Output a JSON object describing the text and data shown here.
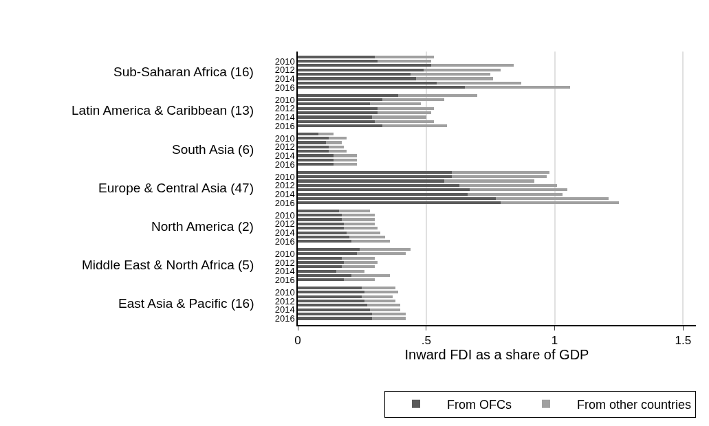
{
  "chart_data": {
    "type": "bar",
    "orientation": "horizontal",
    "stacked": true,
    "categories": [
      null,
      "2010",
      null,
      "2012",
      null,
      "2014",
      null,
      "2016",
      null,
      "2010",
      null,
      "2012",
      null,
      "2014",
      null,
      "2016",
      null,
      "2010",
      null,
      "2012",
      null,
      "2014",
      null,
      "2016",
      null,
      "2010",
      null,
      "2012",
      null,
      "2014",
      null,
      "2016",
      null,
      "2010",
      null,
      "2012",
      null,
      "2014",
      null,
      "2016",
      null,
      "2010",
      null,
      "2012",
      null,
      "2014",
      null,
      "2016",
      null,
      "2010",
      null,
      "2012",
      null,
      "2014",
      null,
      "2016"
    ],
    "series": [
      {
        "name": "From OFCs",
        "color": "#5a5a5a",
        "values": [
          0.3,
          0.31,
          0.52,
          0.49,
          0.44,
          0.46,
          0.54,
          0.65,
          0.39,
          0.33,
          0.28,
          0.31,
          0.31,
          0.29,
          0.3,
          0.33,
          0.08,
          0.12,
          0.11,
          0.12,
          0.12,
          0.14,
          0.14,
          0.14,
          0.6,
          0.6,
          0.57,
          0.63,
          0.67,
          0.66,
          0.77,
          0.79,
          0.16,
          0.17,
          0.17,
          0.18,
          0.18,
          0.19,
          0.2,
          0.21,
          0.24,
          0.23,
          0.17,
          0.18,
          0.17,
          0.15,
          0.21,
          0.18,
          0.25,
          0.26,
          0.25,
          0.26,
          0.27,
          0.28,
          0.29,
          0.29
        ]
      },
      {
        "name": "From other countries",
        "color": "#a0a0a0",
        "values": [
          0.23,
          0.21,
          0.32,
          0.3,
          0.31,
          0.3,
          0.33,
          0.41,
          0.31,
          0.24,
          0.2,
          0.22,
          0.21,
          0.21,
          0.23,
          0.25,
          0.06,
          0.07,
          0.06,
          0.06,
          0.07,
          0.09,
          0.09,
          0.09,
          0.38,
          0.37,
          0.35,
          0.38,
          0.38,
          0.37,
          0.44,
          0.46,
          0.12,
          0.13,
          0.13,
          0.12,
          0.13,
          0.13,
          0.14,
          0.15,
          0.2,
          0.19,
          0.13,
          0.13,
          0.13,
          0.11,
          0.15,
          0.12,
          0.13,
          0.13,
          0.12,
          0.12,
          0.13,
          0.12,
          0.13,
          0.13
        ]
      }
    ],
    "annotations": [
      "Sub-Saharan Africa (16)",
      "Latin America & Caribbean (13)",
      "South Asia (6)",
      "Europe & Central Asia (47)",
      "North America (2)",
      "Middle East & North Africa (5)",
      "East Asia & Pacific (16)"
    ],
    "xlabel": "Inward FDI as a share of GDP",
    "xlim": [
      0,
      1.55
    ],
    "xticks": [
      0,
      {
        "value": 0.5,
        "label": ".5"
      },
      1,
      1.5
    ],
    "grid": "x",
    "legend": "bottom"
  }
}
